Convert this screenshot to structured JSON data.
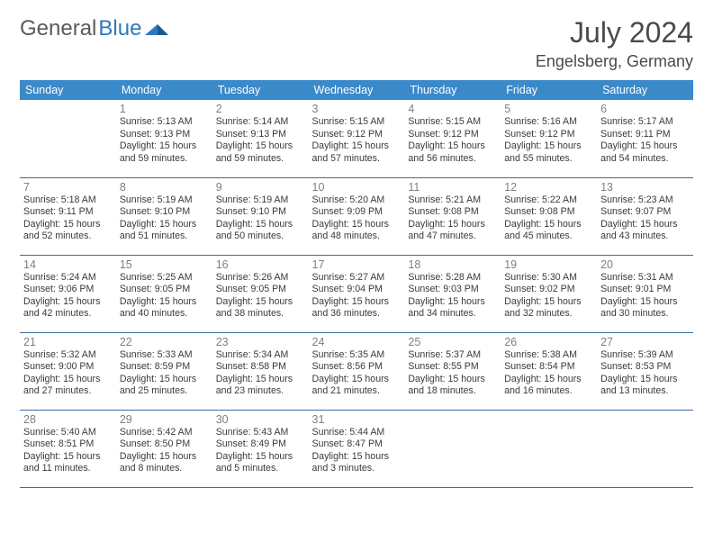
{
  "logo": {
    "part1": "General",
    "part2": "Blue"
  },
  "title": "July 2024",
  "location": "Engelsberg, Germany",
  "colors": {
    "header_bg": "#3a89c9",
    "header_text": "#ffffff",
    "row_border": "#3a6fa0",
    "daynum": "#808080",
    "body_text": "#3a3a3a",
    "logo_gray": "#5a5a5a",
    "logo_blue": "#2f78bd"
  },
  "weekdays": [
    "Sunday",
    "Monday",
    "Tuesday",
    "Wednesday",
    "Thursday",
    "Friday",
    "Saturday"
  ],
  "weeks": [
    [
      {
        "n": "",
        "sr": "",
        "ss": "",
        "dl": ""
      },
      {
        "n": "1",
        "sr": "5:13 AM",
        "ss": "9:13 PM",
        "dl": "15 hours and 59 minutes."
      },
      {
        "n": "2",
        "sr": "5:14 AM",
        "ss": "9:13 PM",
        "dl": "15 hours and 59 minutes."
      },
      {
        "n": "3",
        "sr": "5:15 AM",
        "ss": "9:12 PM",
        "dl": "15 hours and 57 minutes."
      },
      {
        "n": "4",
        "sr": "5:15 AM",
        "ss": "9:12 PM",
        "dl": "15 hours and 56 minutes."
      },
      {
        "n": "5",
        "sr": "5:16 AM",
        "ss": "9:12 PM",
        "dl": "15 hours and 55 minutes."
      },
      {
        "n": "6",
        "sr": "5:17 AM",
        "ss": "9:11 PM",
        "dl": "15 hours and 54 minutes."
      }
    ],
    [
      {
        "n": "7",
        "sr": "5:18 AM",
        "ss": "9:11 PM",
        "dl": "15 hours and 52 minutes."
      },
      {
        "n": "8",
        "sr": "5:19 AM",
        "ss": "9:10 PM",
        "dl": "15 hours and 51 minutes."
      },
      {
        "n": "9",
        "sr": "5:19 AM",
        "ss": "9:10 PM",
        "dl": "15 hours and 50 minutes."
      },
      {
        "n": "10",
        "sr": "5:20 AM",
        "ss": "9:09 PM",
        "dl": "15 hours and 48 minutes."
      },
      {
        "n": "11",
        "sr": "5:21 AM",
        "ss": "9:08 PM",
        "dl": "15 hours and 47 minutes."
      },
      {
        "n": "12",
        "sr": "5:22 AM",
        "ss": "9:08 PM",
        "dl": "15 hours and 45 minutes."
      },
      {
        "n": "13",
        "sr": "5:23 AM",
        "ss": "9:07 PM",
        "dl": "15 hours and 43 minutes."
      }
    ],
    [
      {
        "n": "14",
        "sr": "5:24 AM",
        "ss": "9:06 PM",
        "dl": "15 hours and 42 minutes."
      },
      {
        "n": "15",
        "sr": "5:25 AM",
        "ss": "9:05 PM",
        "dl": "15 hours and 40 minutes."
      },
      {
        "n": "16",
        "sr": "5:26 AM",
        "ss": "9:05 PM",
        "dl": "15 hours and 38 minutes."
      },
      {
        "n": "17",
        "sr": "5:27 AM",
        "ss": "9:04 PM",
        "dl": "15 hours and 36 minutes."
      },
      {
        "n": "18",
        "sr": "5:28 AM",
        "ss": "9:03 PM",
        "dl": "15 hours and 34 minutes."
      },
      {
        "n": "19",
        "sr": "5:30 AM",
        "ss": "9:02 PM",
        "dl": "15 hours and 32 minutes."
      },
      {
        "n": "20",
        "sr": "5:31 AM",
        "ss": "9:01 PM",
        "dl": "15 hours and 30 minutes."
      }
    ],
    [
      {
        "n": "21",
        "sr": "5:32 AM",
        "ss": "9:00 PM",
        "dl": "15 hours and 27 minutes."
      },
      {
        "n": "22",
        "sr": "5:33 AM",
        "ss": "8:59 PM",
        "dl": "15 hours and 25 minutes."
      },
      {
        "n": "23",
        "sr": "5:34 AM",
        "ss": "8:58 PM",
        "dl": "15 hours and 23 minutes."
      },
      {
        "n": "24",
        "sr": "5:35 AM",
        "ss": "8:56 PM",
        "dl": "15 hours and 21 minutes."
      },
      {
        "n": "25",
        "sr": "5:37 AM",
        "ss": "8:55 PM",
        "dl": "15 hours and 18 minutes."
      },
      {
        "n": "26",
        "sr": "5:38 AM",
        "ss": "8:54 PM",
        "dl": "15 hours and 16 minutes."
      },
      {
        "n": "27",
        "sr": "5:39 AM",
        "ss": "8:53 PM",
        "dl": "15 hours and 13 minutes."
      }
    ],
    [
      {
        "n": "28",
        "sr": "5:40 AM",
        "ss": "8:51 PM",
        "dl": "15 hours and 11 minutes."
      },
      {
        "n": "29",
        "sr": "5:42 AM",
        "ss": "8:50 PM",
        "dl": "15 hours and 8 minutes."
      },
      {
        "n": "30",
        "sr": "5:43 AM",
        "ss": "8:49 PM",
        "dl": "15 hours and 5 minutes."
      },
      {
        "n": "31",
        "sr": "5:44 AM",
        "ss": "8:47 PM",
        "dl": "15 hours and 3 minutes."
      },
      {
        "n": "",
        "sr": "",
        "ss": "",
        "dl": ""
      },
      {
        "n": "",
        "sr": "",
        "ss": "",
        "dl": ""
      },
      {
        "n": "",
        "sr": "",
        "ss": "",
        "dl": ""
      }
    ]
  ],
  "labels": {
    "sunrise": "Sunrise: ",
    "sunset": "Sunset: ",
    "daylight": "Daylight: "
  }
}
